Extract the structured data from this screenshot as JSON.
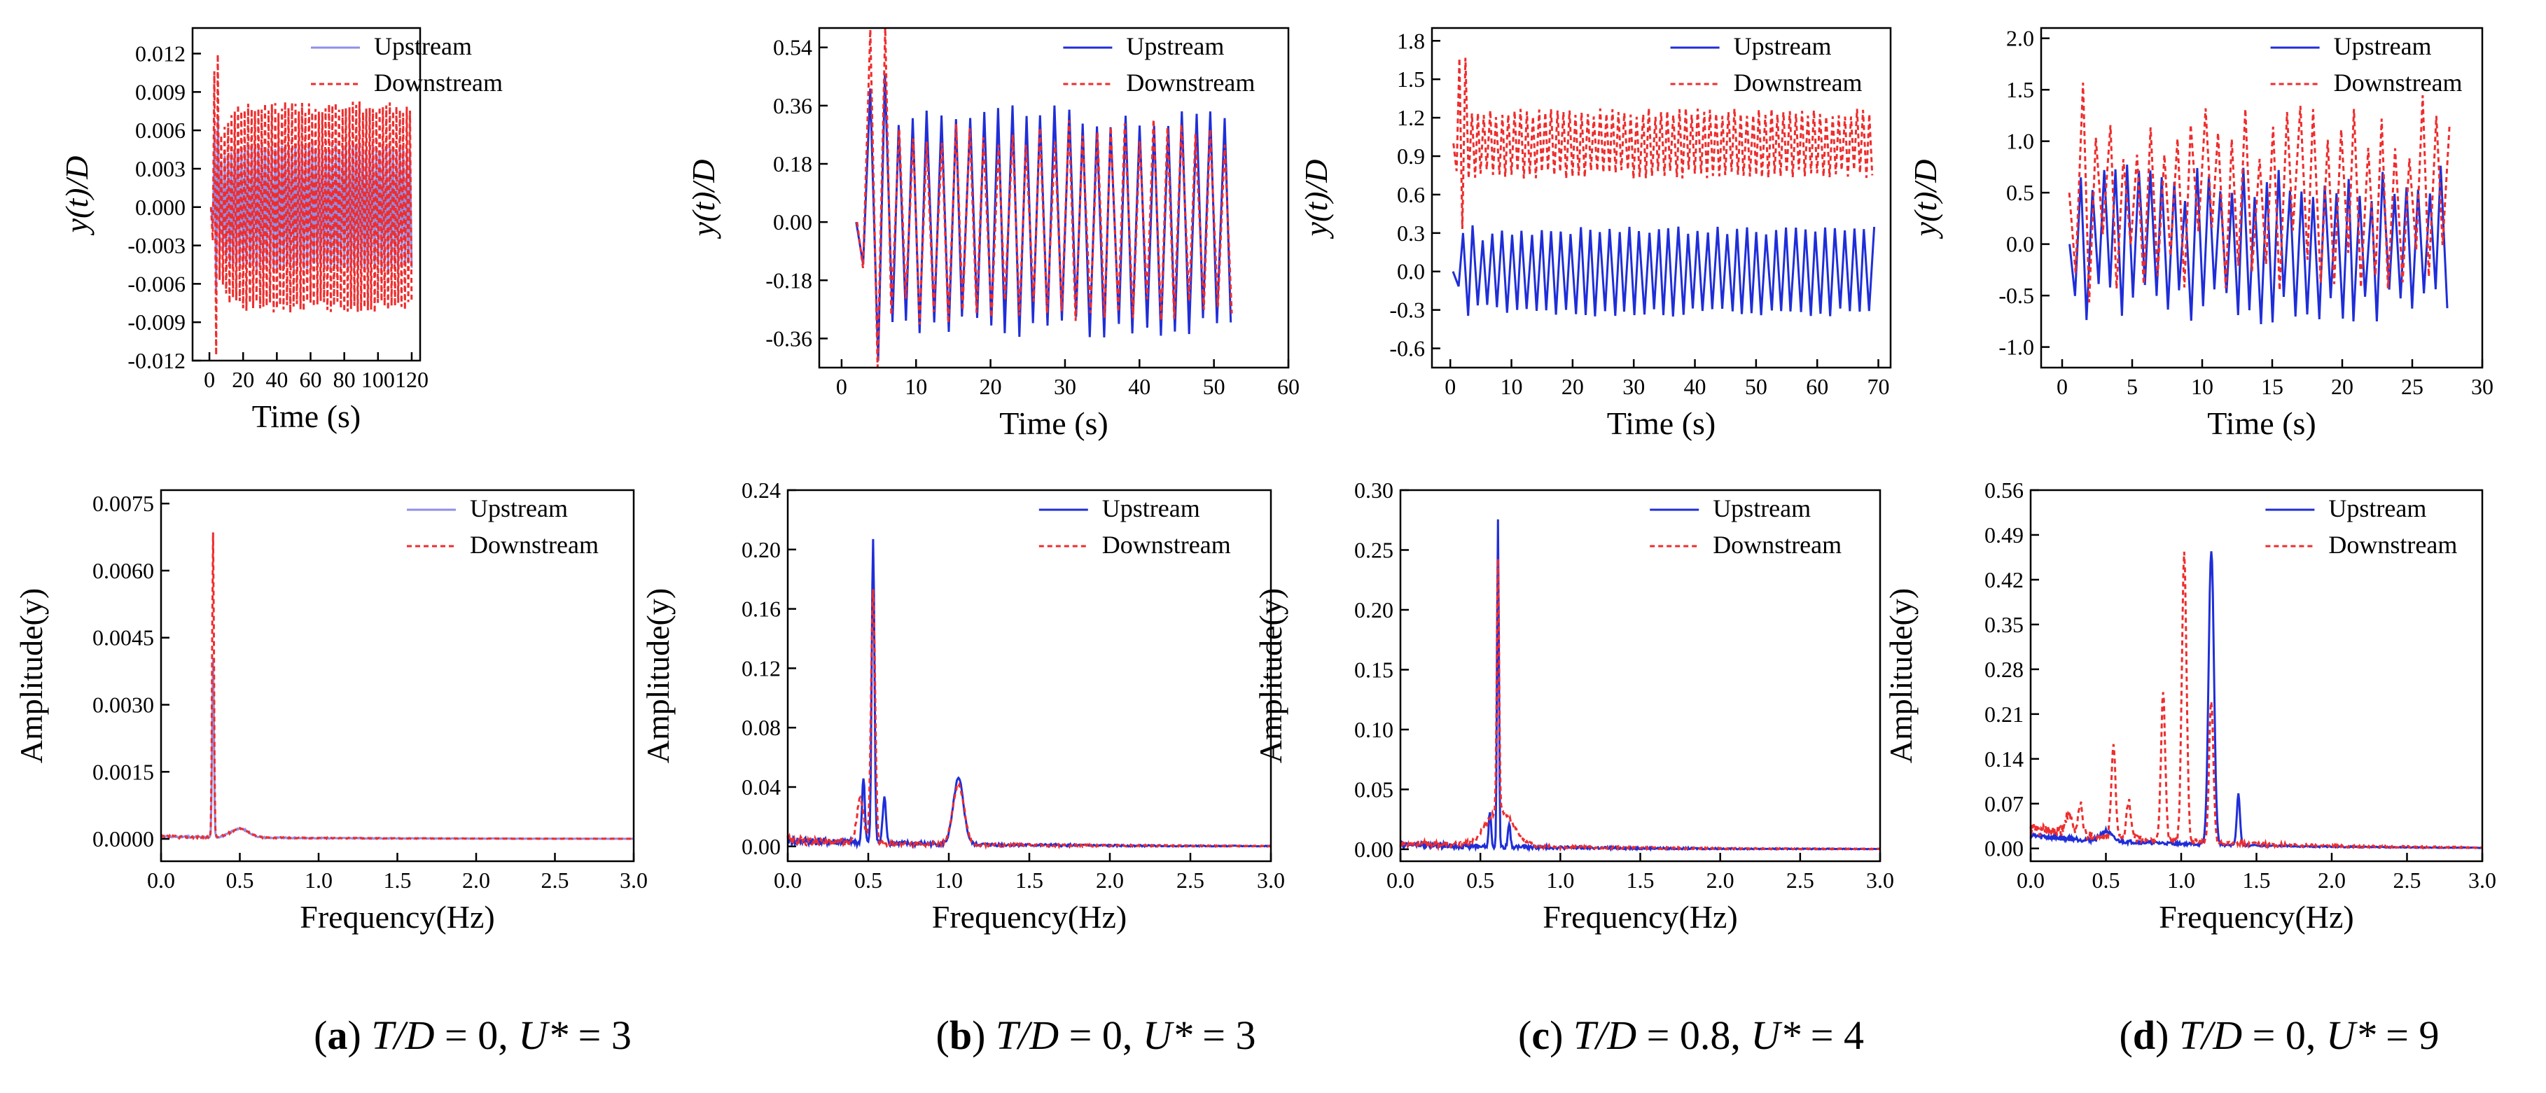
{
  "colors": {
    "upstream": "#1f2ed8",
    "upstream_light": "#8f8fe8",
    "downstream": "#ee2d2d",
    "axis": "#000000"
  },
  "chart_data": [
    {
      "id": "a-time",
      "type": "line",
      "ylabel": "y(t)/D",
      "xlabel": "Time (s)",
      "xlim": [
        -10,
        125
      ],
      "ylim": [
        -0.012,
        0.014
      ],
      "xticks": [
        0,
        20,
        40,
        60,
        80,
        100,
        120
      ],
      "xtick_labels": [
        "0",
        "20",
        "40",
        "60",
        "80",
        "100",
        "120"
      ],
      "yticks": [
        -0.012,
        -0.009,
        -0.006,
        -0.003,
        0,
        0.003,
        0.006,
        0.009,
        0.012
      ],
      "ytick_labels": [
        "-0.012",
        "-0.009",
        "-0.006",
        "-0.003",
        "0.000",
        "0.003",
        "0.006",
        "0.009",
        "0.012"
      ],
      "legend": [
        "Upstream",
        "Downstream"
      ],
      "legend_position": "top-right",
      "series": [
        {
          "name": "Upstream",
          "style": "light-solid",
          "signal": {
            "t0": 1,
            "t1": 120,
            "period": 2.0,
            "amp": 0.0047,
            "rise": 15,
            "spike": 0.004,
            "jitter": 0.06,
            "offset": 0,
            "seed": 3
          }
        },
        {
          "name": "Downstream",
          "style": "dashed",
          "signal": {
            "t0": 1,
            "t1": 120,
            "period": 2.0,
            "amp": 0.0078,
            "rise": 15,
            "spike": 0.007,
            "jitter": 0.06,
            "offset": 0,
            "seed": 7
          }
        }
      ]
    },
    {
      "id": "b-time",
      "type": "line",
      "ylabel": "y(t)/D",
      "xlabel": "Time (s)",
      "xlim": [
        -3,
        60
      ],
      "ylim": [
        -0.45,
        0.6
      ],
      "xticks": [
        0,
        10,
        20,
        30,
        40,
        50,
        60
      ],
      "xtick_labels": [
        "0",
        "10",
        "20",
        "30",
        "40",
        "50",
        "60"
      ],
      "yticks": [
        -0.36,
        -0.18,
        0,
        0.18,
        0.36,
        0.54
      ],
      "ytick_labels": [
        "-0.36",
        "-0.18",
        "0.00",
        "0.18",
        "0.36",
        "0.54"
      ],
      "legend": [
        "Upstream",
        "Downstream"
      ],
      "legend_position": "top-right",
      "series": [
        {
          "name": "Upstream",
          "style": "solid",
          "signal": {
            "t0": 2,
            "t1": 52,
            "period": 1.9,
            "amp": 0.33,
            "rise": 8,
            "spike": 0.2,
            "jitter": 0.12,
            "offset": 0,
            "seed": 11
          }
        },
        {
          "name": "Downstream",
          "style": "dashed",
          "signal": {
            "t0": 2,
            "t1": 52,
            "period": 1.9,
            "amp": 0.28,
            "rise": 6,
            "spike": 0.38,
            "jitter": 0.15,
            "offset": 0,
            "seed": 13
          }
        }
      ]
    },
    {
      "id": "c-time",
      "type": "line",
      "ylabel": "y(t)/D",
      "xlabel": "Time (s)",
      "xlim": [
        -3,
        72
      ],
      "ylim": [
        -0.75,
        1.9
      ],
      "xticks": [
        0,
        10,
        20,
        30,
        40,
        50,
        60,
        70
      ],
      "xtick_labels": [
        "0",
        "10",
        "20",
        "30",
        "40",
        "50",
        "60",
        "70"
      ],
      "yticks": [
        -0.6,
        -0.3,
        0,
        0.3,
        0.6,
        0.9,
        1.2,
        1.5,
        1.8
      ],
      "ytick_labels": [
        "-0.6",
        "-0.3",
        "0.0",
        "0.3",
        "0.6",
        "0.9",
        "1.2",
        "1.5",
        "1.8"
      ],
      "legend": [
        "Upstream",
        "Downstream"
      ],
      "legend_position": "top-right",
      "series": [
        {
          "name": "Upstream",
          "style": "solid",
          "signal": {
            "t0": 0.5,
            "t1": 69,
            "period": 1.6,
            "amp": 0.32,
            "rise": 10,
            "spike": 0.15,
            "jitter": 0.1,
            "offset": 0,
            "seed": 17
          }
        },
        {
          "name": "Downstream",
          "style": "dashed",
          "signal": {
            "t0": 0.5,
            "t1": 69,
            "period": 1.0,
            "amp": 0.24,
            "rise": 1,
            "spike": 0.45,
            "jitter": 0.15,
            "offset": 1.0,
            "seed": 19
          }
        }
      ]
    },
    {
      "id": "d-time",
      "type": "line",
      "ylabel": "y(t)/D",
      "xlabel": "Time (s)",
      "xlim": [
        -1.5,
        30
      ],
      "ylim": [
        -1.2,
        2.1
      ],
      "xticks": [
        0,
        5,
        10,
        15,
        20,
        25,
        30
      ],
      "xtick_labels": [
        "0",
        "5",
        "10",
        "15",
        "20",
        "25",
        "30"
      ],
      "yticks": [
        -1.0,
        -0.5,
        0,
        0.5,
        1.0,
        1.5,
        2.0
      ],
      "ytick_labels": [
        "-1.0",
        "-0.5",
        "0.0",
        "0.5",
        "1.0",
        "1.5",
        "2.0"
      ],
      "legend": [
        "Upstream",
        "Downstream"
      ],
      "legend_position": "top-right",
      "series": [
        {
          "name": "Upstream",
          "style": "solid",
          "signal": {
            "t0": 0.5,
            "t1": 27.5,
            "period": 0.83,
            "amp": 0.58,
            "rise": 1,
            "spike": 0.1,
            "jitter": 0.35,
            "offset": 0,
            "seed": 23
          }
        },
        {
          "name": "Downstream",
          "style": "dashed",
          "signal": {
            "t0": 0.5,
            "t1": 27.5,
            "period": 0.97,
            "amp": 0.65,
            "rise": 1,
            "spike": 0.2,
            "jitter": 0.5,
            "offset": 0.5,
            "seed": 29
          }
        }
      ]
    },
    {
      "id": "a-freq",
      "type": "line",
      "ylabel": "Amplitude(y)",
      "xlabel": "Frequency(Hz)",
      "xlim": [
        0,
        3
      ],
      "ylim": [
        -0.0005,
        0.0078
      ],
      "xticks": [
        0,
        0.5,
        1.0,
        1.5,
        2.0,
        2.5,
        3.0
      ],
      "xtick_labels": [
        "0.0",
        "0.5",
        "1.0",
        "1.5",
        "2.0",
        "2.5",
        "3.0"
      ],
      "yticks": [
        0,
        0.0015,
        0.003,
        0.0045,
        0.006,
        0.0075
      ],
      "ytick_labels": [
        "0.0000",
        "0.0015",
        "0.0030",
        "0.0045",
        "0.0060",
        "0.0075"
      ],
      "legend": [
        "Upstream",
        "Downstream"
      ],
      "legend_position": "top-right",
      "series": [
        {
          "name": "Upstream",
          "style": "light-solid",
          "spectrum": {
            "base": 5e-05,
            "noise": 5e-05,
            "seed": 31,
            "peaks": [
              {
                "f": 0.33,
                "a": 0.004,
                "w": 0.008
              },
              {
                "f": 0.5,
                "a": 0.0002,
                "w": 0.08
              }
            ]
          }
        },
        {
          "name": "Downstream",
          "style": "dashed",
          "spectrum": {
            "base": 5e-05,
            "noise": 6e-05,
            "seed": 37,
            "peaks": [
              {
                "f": 0.33,
                "a": 0.0068,
                "w": 0.008
              },
              {
                "f": 0.5,
                "a": 0.0002,
                "w": 0.08
              }
            ]
          }
        }
      ]
    },
    {
      "id": "b-freq",
      "type": "line",
      "ylabel": "Amplitude(y)",
      "xlabel": "Frequency(Hz)",
      "xlim": [
        0,
        3
      ],
      "ylim": [
        -0.01,
        0.24
      ],
      "xticks": [
        0,
        0.5,
        1.0,
        1.5,
        2.0,
        2.5,
        3.0
      ],
      "xtick_labels": [
        "0.0",
        "0.5",
        "1.0",
        "1.5",
        "2.0",
        "2.5",
        "3.0"
      ],
      "yticks": [
        0,
        0.04,
        0.08,
        0.12,
        0.16,
        0.2,
        0.24
      ],
      "ytick_labels": [
        "0.00",
        "0.04",
        "0.08",
        "0.12",
        "0.16",
        "0.20",
        "0.24"
      ],
      "legend": [
        "Upstream",
        "Downstream"
      ],
      "legend_position": "top-right",
      "series": [
        {
          "name": "Upstream",
          "style": "solid",
          "spectrum": {
            "base": 0.004,
            "noise": 0.006,
            "seed": 41,
            "peaks": [
              {
                "f": 0.53,
                "a": 0.205,
                "w": 0.012
              },
              {
                "f": 0.47,
                "a": 0.045,
                "w": 0.012
              },
              {
                "f": 0.6,
                "a": 0.03,
                "w": 0.015
              },
              {
                "f": 1.06,
                "a": 0.044,
                "w": 0.045
              }
            ]
          }
        },
        {
          "name": "Downstream",
          "style": "dashed",
          "spectrum": {
            "base": 0.004,
            "noise": 0.006,
            "seed": 43,
            "peaks": [
              {
                "f": 0.53,
                "a": 0.17,
                "w": 0.018
              },
              {
                "f": 0.45,
                "a": 0.03,
                "w": 0.03
              },
              {
                "f": 1.06,
                "a": 0.04,
                "w": 0.05
              }
            ]
          }
        }
      ]
    },
    {
      "id": "c-freq",
      "type": "line",
      "ylabel": "Amplitude(y)",
      "xlabel": "Frequency(Hz)",
      "xlim": [
        0,
        3
      ],
      "ylim": [
        -0.01,
        0.3
      ],
      "xticks": [
        0,
        0.5,
        1.0,
        1.5,
        2.0,
        2.5,
        3.0
      ],
      "xtick_labels": [
        "0.0",
        "0.5",
        "1.0",
        "1.5",
        "2.0",
        "2.5",
        "3.0"
      ],
      "yticks": [
        0,
        0.05,
        0.1,
        0.15,
        0.2,
        0.25,
        0.3
      ],
      "ytick_labels": [
        "0.00",
        "0.05",
        "0.10",
        "0.15",
        "0.20",
        "0.25",
        "0.30"
      ],
      "legend": [
        "Upstream",
        "Downstream"
      ],
      "legend_position": "top-right",
      "series": [
        {
          "name": "Upstream",
          "style": "solid",
          "spectrum": {
            "base": 0.004,
            "noise": 0.006,
            "seed": 47,
            "peaks": [
              {
                "f": 0.61,
                "a": 0.272,
                "w": 0.008
              },
              {
                "f": 0.56,
                "a": 0.03,
                "w": 0.01
              },
              {
                "f": 0.68,
                "a": 0.02,
                "w": 0.01
              }
            ]
          }
        },
        {
          "name": "Downstream",
          "style": "dashed",
          "spectrum": {
            "base": 0.005,
            "noise": 0.006,
            "seed": 53,
            "peaks": [
              {
                "f": 0.61,
                "a": 0.21,
                "w": 0.01
              },
              {
                "f": 0.62,
                "a": 0.03,
                "w": 0.12
              }
            ]
          }
        }
      ]
    },
    {
      "id": "d-freq",
      "type": "line",
      "ylabel": "Amplitude(y)",
      "xlabel": "Frequency(Hz)",
      "xlim": [
        0,
        3
      ],
      "ylim": [
        -0.02,
        0.56
      ],
      "xticks": [
        0,
        0.5,
        1.0,
        1.5,
        2.0,
        2.5,
        3.0
      ],
      "xtick_labels": [
        "0.0",
        "0.5",
        "1.0",
        "1.5",
        "2.0",
        "2.5",
        "3.0"
      ],
      "yticks": [
        0,
        0.07,
        0.14,
        0.21,
        0.28,
        0.35,
        0.42,
        0.49,
        0.56
      ],
      "ytick_labels": [
        "0.00",
        "0.07",
        "0.14",
        "0.21",
        "0.28",
        "0.35",
        "0.42",
        "0.49",
        "0.56"
      ],
      "legend": [
        "Upstream",
        "Downstream"
      ],
      "legend_position": "top-right",
      "series": [
        {
          "name": "Upstream",
          "style": "solid",
          "spectrum": {
            "base": 0.02,
            "noise": 0.01,
            "seed": 59,
            "peaks": [
              {
                "f": 1.2,
                "a": 0.46,
                "w": 0.025
              },
              {
                "f": 1.38,
                "a": 0.08,
                "w": 0.015
              },
              {
                "f": 0.5,
                "a": 0.015,
                "w": 0.05
              }
            ]
          }
        },
        {
          "name": "Downstream",
          "style": "dashed",
          "spectrum": {
            "base": 0.03,
            "noise": 0.02,
            "seed": 61,
            "peaks": [
              {
                "f": 0.33,
                "a": 0.05,
                "w": 0.02
              },
              {
                "f": 0.55,
                "a": 0.14,
                "w": 0.02
              },
              {
                "f": 0.65,
                "a": 0.06,
                "w": 0.02
              },
              {
                "f": 0.88,
                "a": 0.23,
                "w": 0.02
              },
              {
                "f": 1.02,
                "a": 0.45,
                "w": 0.022
              },
              {
                "f": 1.2,
                "a": 0.22,
                "w": 0.02
              },
              {
                "f": 0.25,
                "a": 0.03,
                "w": 0.03
              }
            ]
          }
        }
      ]
    }
  ],
  "captions": [
    {
      "letter": "a",
      "td": "T/D",
      "td_value": " = 0, ",
      "u": "U*",
      "u_value": " = 3"
    },
    {
      "letter": "b",
      "td": "T/D",
      "td_value": " = 0, ",
      "u": "U*",
      "u_value": " = 3"
    },
    {
      "letter": "c",
      "td": "T/D",
      "td_value": " = 0.8, ",
      "u": "U*",
      "u_value": " = 4"
    },
    {
      "letter": "d",
      "td": "T/D",
      "td_value": " = 0, ",
      "u": "U*",
      "u_value": " = 9"
    }
  ]
}
